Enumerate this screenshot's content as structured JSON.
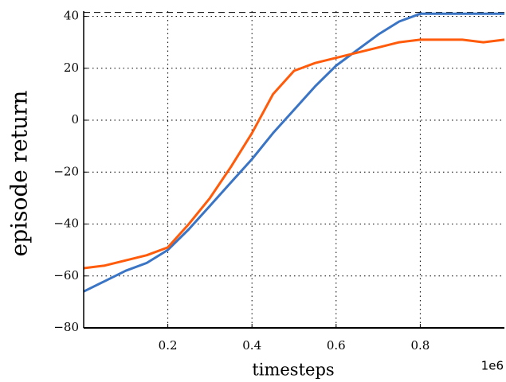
{
  "chart_data": {
    "type": "line",
    "xlabel": "timesteps",
    "ylabel": "episode return",
    "offset_text": "1e6",
    "x": [
      0,
      0.05,
      0.1,
      0.15,
      0.2,
      0.25,
      0.3,
      0.35,
      0.4,
      0.45,
      0.5,
      0.55,
      0.6,
      0.65,
      0.7,
      0.75,
      0.8,
      0.85,
      0.9,
      0.95,
      1.0
    ],
    "series": [
      {
        "color": "#3a74c4",
        "values": [
          -66,
          -62,
          -58,
          -55,
          -50,
          -42,
          -33,
          -24,
          -15,
          -5,
          4,
          13,
          21,
          27,
          33,
          38,
          41,
          41,
          41,
          41,
          41
        ]
      },
      {
        "color": "#ff5b0a",
        "values": [
          -57,
          -56,
          -54,
          -52,
          -49,
          -40,
          -30,
          -18,
          -5,
          10,
          19,
          22,
          24,
          26,
          28,
          30,
          31,
          31,
          31,
          30,
          31
        ]
      }
    ],
    "hline": 41.5,
    "xlim": [
      0,
      1.0
    ],
    "ylim": [
      -80,
      42
    ],
    "xticks": [
      0.2,
      0.4,
      0.6,
      0.8
    ],
    "yticks": [
      {
        "value": -80,
        "label": "−80"
      },
      {
        "value": -60,
        "label": "−60"
      },
      {
        "value": -40,
        "label": "−40"
      },
      {
        "value": -20,
        "label": "−20"
      },
      0,
      20,
      40
    ],
    "grid": true
  }
}
